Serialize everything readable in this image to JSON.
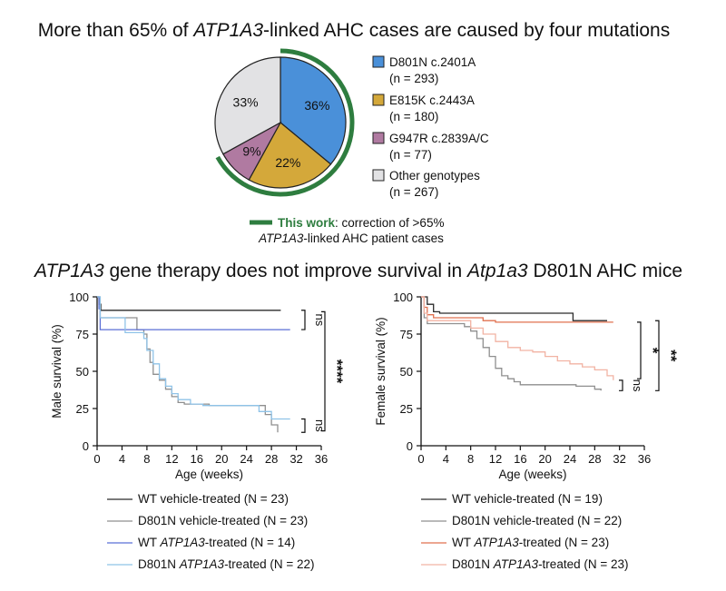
{
  "top_title": {
    "pre": "More than 65% of ",
    "gene": "ATP1A3",
    "post": "-linked AHC cases are caused by four mutations"
  },
  "bottom_title": {
    "gene": "ATP1A3",
    "mid": " gene therapy does not improve survival in ",
    "mouse": "Atp1a3",
    "post": " D801N AHC mice"
  },
  "highlight": {
    "label": "This work",
    "text": ": correction of >65%",
    "line2_gene": "ATP1A3",
    "line2_rest": "-linked AHC patient cases"
  },
  "colors": {
    "d801n": "#4a90d9",
    "e815k": "#d4a83a",
    "g947r": "#b07aa1",
    "other": "#e2e2e4",
    "arc": "#2e7d3f",
    "wt_vehicle": "#2b2b2b",
    "d801n_vehicle": "#8f8f8f",
    "male_wt_treated": "#5b6fd6",
    "male_d801n_treated": "#8fc3e8",
    "female_wt_treated": "#e0704f",
    "female_d801n_treated": "#f2b3a3"
  },
  "chart_data": [
    {
      "type": "pie",
      "categories": [
        "D801N c.2401A",
        "E815K c.2443A",
        "G947R c.2839A/C",
        "Other genotypes"
      ],
      "counts": [
        "(n = 293)",
        "(n = 180)",
        "(n = 77)",
        "(n = 267)"
      ],
      "values": [
        36,
        22,
        9,
        33
      ],
      "labels": [
        "36%",
        "22%",
        "9%",
        "33%"
      ],
      "legend_position": "right"
    },
    {
      "type": "line",
      "ylabel": "Male survival (%)",
      "xlabel": "Age (weeks)",
      "xlim": [
        0,
        36
      ],
      "ylim": [
        0,
        100
      ],
      "xticks": [
        "0",
        "4",
        "8",
        "12",
        "16",
        "20",
        "24",
        "28",
        "32",
        "36"
      ],
      "yticks": [
        "0",
        "25",
        "50",
        "75",
        "100"
      ],
      "series": [
        {
          "name": "WT vehicle-treated (N = 23)",
          "color": "#2b2b2b",
          "points": [
            [
              0,
              100
            ],
            [
              0.3,
              95
            ],
            [
              0.6,
              91
            ],
            [
              29.5,
              91
            ]
          ]
        },
        {
          "name": "D801N vehicle-treated (N = 23)",
          "color": "#8f8f8f",
          "points": [
            [
              0,
              100
            ],
            [
              0.5,
              86
            ],
            [
              4,
              86
            ],
            [
              6,
              86
            ],
            [
              6.4,
              78
            ],
            [
              7.5,
              75
            ],
            [
              8,
              65
            ],
            [
              8.5,
              56
            ],
            [
              9,
              48
            ],
            [
              10,
              44
            ],
            [
              11,
              38
            ],
            [
              12,
              33
            ],
            [
              13,
              29
            ],
            [
              14,
              28
            ],
            [
              17,
              28
            ],
            [
              18,
              27
            ],
            [
              25,
              27
            ],
            [
              27,
              21
            ],
            [
              28,
              14
            ],
            [
              29,
              9
            ]
          ]
        },
        {
          "name": "WT ATP1A3-treated (N = 14)",
          "color": "#5b6fd6",
          "points": [
            [
              0,
              100
            ],
            [
              0.3,
              92
            ],
            [
              0.5,
              78
            ],
            [
              31,
              78
            ]
          ]
        },
        {
          "name": "D801N ATP1A3-treated (N = 22)",
          "color": "#8fc3e8",
          "points": [
            [
              0,
              100
            ],
            [
              0.5,
              86
            ],
            [
              4,
              86
            ],
            [
              4.5,
              76
            ],
            [
              6.5,
              76
            ],
            [
              7.5,
              72
            ],
            [
              8,
              64
            ],
            [
              9,
              55
            ],
            [
              10,
              45
            ],
            [
              11,
              40
            ],
            [
              12,
              35
            ],
            [
              13,
              31
            ],
            [
              15,
              28
            ],
            [
              17,
              27
            ],
            [
              23,
              27
            ],
            [
              26,
              23
            ],
            [
              28,
              18
            ],
            [
              31,
              18
            ]
          ]
        }
      ],
      "annotations": [
        {
          "text": "ns",
          "between": "WT groups"
        },
        {
          "text": "ns",
          "between": "D801N groups"
        },
        {
          "text": "****",
          "between": "WT vs D801N"
        }
      ]
    },
    {
      "type": "line",
      "ylabel": "Female survival (%)",
      "xlabel": "Age (weeks)",
      "xlim": [
        0,
        36
      ],
      "ylim": [
        0,
        100
      ],
      "xticks": [
        "0",
        "4",
        "8",
        "12",
        "16",
        "20",
        "24",
        "28",
        "32",
        "36"
      ],
      "yticks": [
        "0",
        "25",
        "50",
        "75",
        "100"
      ],
      "series": [
        {
          "name": "WT vehicle-treated (N = 19)",
          "color": "#2b2b2b",
          "points": [
            [
              0,
              100
            ],
            [
              1,
              95
            ],
            [
              2,
              90
            ],
            [
              3,
              89
            ],
            [
              24,
              89
            ],
            [
              24.5,
              84
            ],
            [
              30,
              84
            ]
          ]
        },
        {
          "name": "D801N vehicle-treated (N = 22)",
          "color": "#8f8f8f",
          "points": [
            [
              0,
              100
            ],
            [
              0.5,
              86
            ],
            [
              1,
              82
            ],
            [
              6,
              82
            ],
            [
              7,
              80
            ],
            [
              8,
              77
            ],
            [
              9,
              72
            ],
            [
              10,
              66
            ],
            [
              11,
              60
            ],
            [
              12,
              52
            ],
            [
              13,
              47
            ],
            [
              14,
              45
            ],
            [
              15,
              43
            ],
            [
              16,
              41
            ],
            [
              22,
              41
            ],
            [
              25,
              40
            ],
            [
              28,
              38
            ],
            [
              29,
              37
            ]
          ]
        },
        {
          "name": "WT ATP1A3-treated (N = 23)",
          "color": "#e0704f",
          "points": [
            [
              0,
              100
            ],
            [
              0.5,
              93
            ],
            [
              1,
              88
            ],
            [
              2,
              86
            ],
            [
              8,
              86
            ],
            [
              10,
              84
            ],
            [
              12,
              83
            ],
            [
              31,
              83
            ]
          ]
        },
        {
          "name": "D801N ATP1A3-treated (N = 23)",
          "color": "#f2b3a3",
          "points": [
            [
              0,
              100
            ],
            [
              0.5,
              89
            ],
            [
              1,
              84
            ],
            [
              4,
              84
            ],
            [
              8,
              79
            ],
            [
              10,
              75
            ],
            [
              12,
              70
            ],
            [
              14,
              66
            ],
            [
              16,
              64
            ],
            [
              18,
              63
            ],
            [
              20,
              60
            ],
            [
              22,
              57
            ],
            [
              24,
              55
            ],
            [
              26,
              53
            ],
            [
              28,
              51
            ],
            [
              30,
              47
            ],
            [
              31,
              44
            ]
          ]
        }
      ],
      "annotations": [
        {
          "text": "ns",
          "between": "D801N groups"
        },
        {
          "text": "*",
          "between": "WT ATP1A3 vs D801N ATP1A3"
        },
        {
          "text": "**",
          "between": "WT vehicle vs D801N vehicle"
        }
      ]
    }
  ],
  "male_legend": [
    {
      "pre": "WT vehicle-treated (N = 23)",
      "gene": "",
      "post": ""
    },
    {
      "pre": "D801N vehicle-treated (N = 23)",
      "gene": "",
      "post": ""
    },
    {
      "pre": "WT ",
      "gene": "ATP1A3",
      "post": "-treated (N = 14)"
    },
    {
      "pre": "D801N ",
      "gene": "ATP1A3",
      "post": "-treated (N = 22)"
    }
  ],
  "female_legend": [
    {
      "pre": "WT vehicle-treated (N = 19)",
      "gene": "",
      "post": ""
    },
    {
      "pre": "D801N vehicle-treated (N = 22)",
      "gene": "",
      "post": ""
    },
    {
      "pre": "WT ",
      "gene": "ATP1A3",
      "post": "-treated (N = 23)"
    },
    {
      "pre": "D801N ",
      "gene": "ATP1A3",
      "post": "-treated (N = 23)"
    }
  ]
}
